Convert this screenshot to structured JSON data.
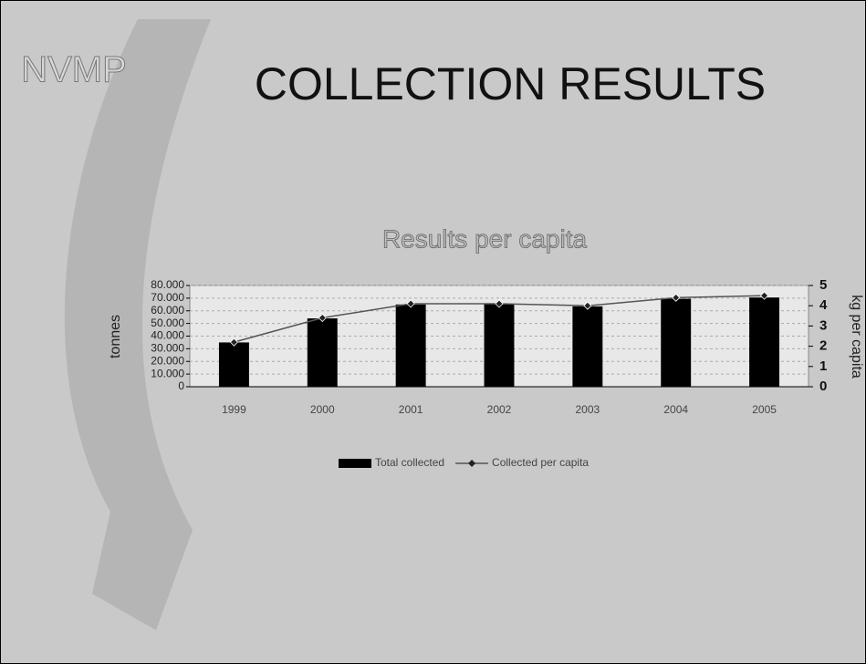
{
  "slide": {
    "logo": "NVMP",
    "title": "COLLECTION RESULTS"
  },
  "chart_data": {
    "type": "bar_line",
    "title": "Results per capita",
    "y_label": "tonnes",
    "y2_label": "kg per capita",
    "categories": [
      "1999",
      "2000",
      "2001",
      "2002",
      "2003",
      "2004",
      "2005"
    ],
    "series": [
      {
        "name": "Total collected",
        "type": "bar",
        "color": "#000000",
        "axis": "y",
        "values": [
          35000,
          54000,
          65000,
          65500,
          63500,
          69500,
          70500
        ]
      },
      {
        "name": "Collected per capita",
        "type": "line",
        "color": "#555555",
        "axis": "y2",
        "values": [
          2.2,
          3.4,
          4.1,
          4.1,
          4.0,
          4.4,
          4.5
        ]
      }
    ],
    "ylim": [
      0,
      80000
    ],
    "yticks": [
      0,
      {
        "value": 10000,
        "label": "10.000"
      },
      {
        "value": 20000,
        "label": "20.000"
      },
      {
        "value": 30000,
        "label": "30.000"
      },
      {
        "value": 40000,
        "label": "40.000"
      },
      {
        "value": 50000,
        "label": "50.000"
      },
      {
        "value": 60000,
        "label": "60.000"
      },
      {
        "value": 70000,
        "label": "70.000"
      },
      {
        "value": 80000,
        "label": "80.000"
      }
    ],
    "y2lim": [
      0,
      5
    ],
    "y2ticks": [
      0,
      1,
      2,
      3,
      4,
      5
    ],
    "grid": true,
    "legend": "bottom"
  }
}
